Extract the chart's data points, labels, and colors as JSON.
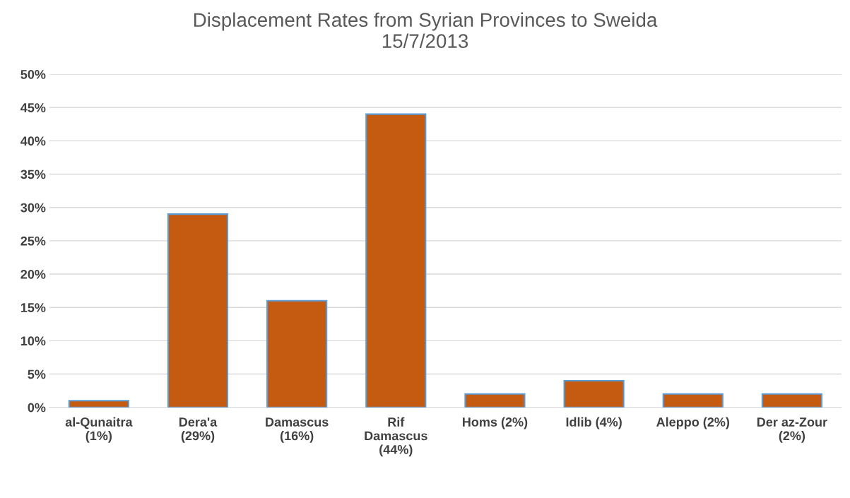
{
  "chart_data": {
    "type": "bar",
    "title": "Displacement Rates from Syrian Provinces to Sweida\n15/7/2013",
    "categories": [
      "al-Qunaitra\n(1%)",
      "Dera'a\n(29%)",
      "Damascus\n(16%)",
      "Rif\nDamascus\n(44%)",
      "Homs (2%)",
      "Idlib (4%)",
      "Aleppo (2%)",
      "Der az-Zour\n(2%)"
    ],
    "values": [
      1,
      29,
      16,
      44,
      2,
      4,
      2,
      2
    ],
    "color": "#c55a11",
    "ylim": [
      0,
      50
    ],
    "yticks": [
      {
        "value": 0,
        "label": "0%"
      },
      {
        "value": 5,
        "label": "5%"
      },
      {
        "value": 10,
        "label": "10%"
      },
      {
        "value": 15,
        "label": "15%"
      },
      {
        "value": 20,
        "label": "20%"
      },
      {
        "value": 25,
        "label": "25%"
      },
      {
        "value": 30,
        "label": "30%"
      },
      {
        "value": 35,
        "label": "35%"
      },
      {
        "value": 40,
        "label": "40%"
      },
      {
        "value": 45,
        "label": "45%"
      },
      {
        "value": 50,
        "label": "50%"
      }
    ],
    "grid": "y"
  }
}
